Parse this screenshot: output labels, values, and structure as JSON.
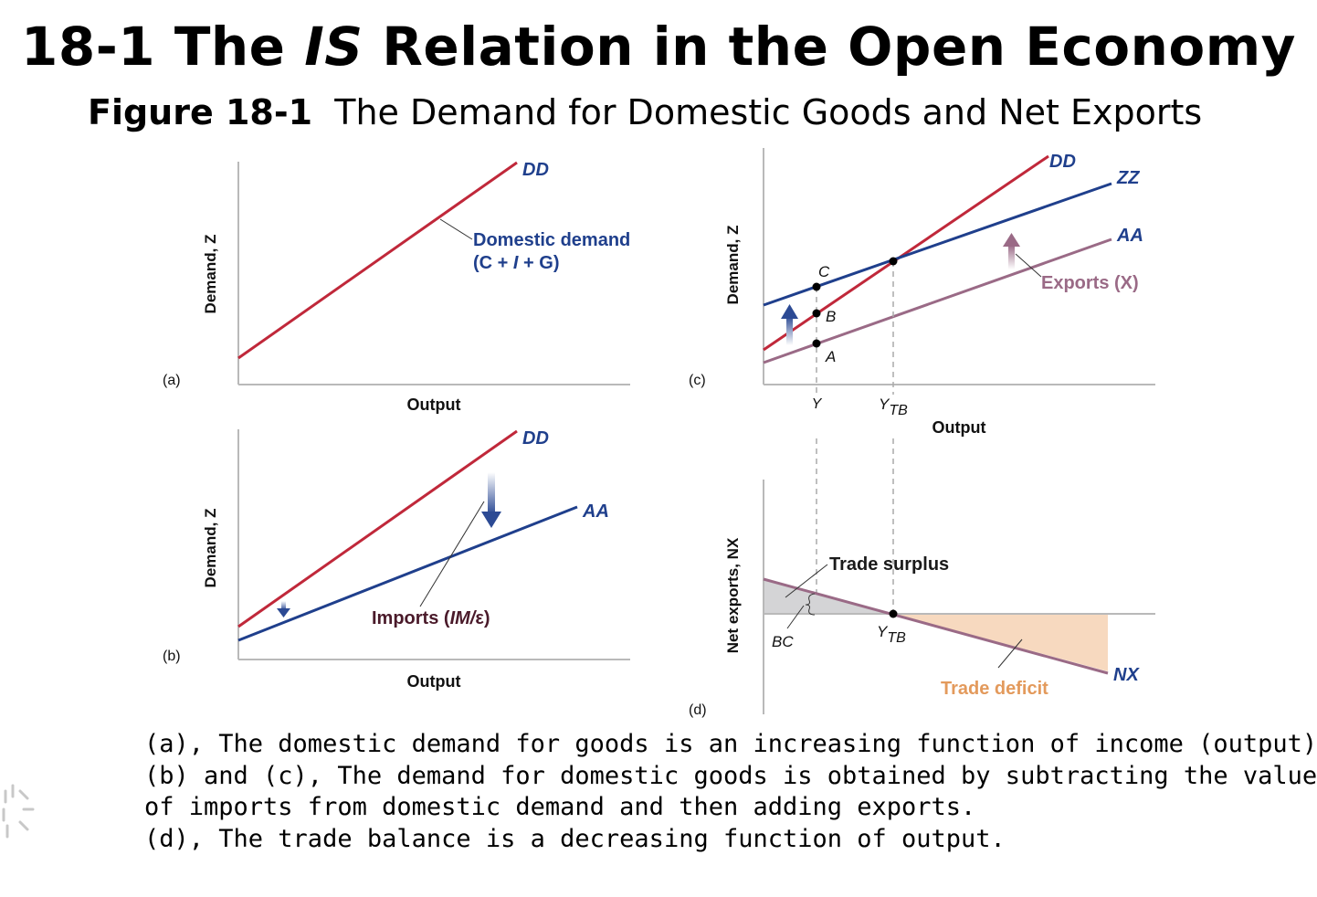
{
  "slide": {
    "title_prefix": "18-1 The ",
    "title_italic": "IS",
    "title_suffix": " Relation in the Open Economy",
    "figure_label": "Figure 18-1",
    "figure_caption": "The Demand for Domestic Goods and Net Exports"
  },
  "panels": {
    "a": {
      "label": "(a)",
      "ylabel": "Demand, Z",
      "xlabel": "Output",
      "dd_label": "DD",
      "callout_line1": "Domestic demand",
      "callout_line2_open": "(C + ",
      "callout_line2_i": "I",
      "callout_line2_close": " + G)"
    },
    "b": {
      "label": "(b)",
      "ylabel": "Demand, Z",
      "xlabel": "Output",
      "dd_label": "DD",
      "aa_label": "AA",
      "imports_prefix": "Imports (",
      "imports_mid": "IM/",
      "imports_suffix": "ε)"
    },
    "c": {
      "label": "(c)",
      "ylabel": "Demand, Z",
      "xlabel": "Output",
      "dd_label": "DD",
      "zz_label": "ZZ",
      "aa_label": "AA",
      "exports_label": "Exports (X)",
      "point_c": "C",
      "point_b": "B",
      "point_a": "A",
      "tick_y": "Y",
      "tick_ytb_main": "Y",
      "tick_ytb_sub": "TB"
    },
    "d": {
      "label": "(d)",
      "ylabel": "Net exports, NX",
      "surplus_label": "Trade surplus",
      "deficit_label": "Trade deficit",
      "nx_label": "NX",
      "bc_label": "BC",
      "ytb_main": "Y",
      "ytb_sub": "TB"
    }
  },
  "colors": {
    "dd_red": "#c0283a",
    "aa_blue": "#1f3f8c",
    "exports_mauve": "#9a6a86",
    "deficit_fill": "#f7d9bf",
    "surplus_fill": "#d4d4d6",
    "deficit_text": "#e39a5c",
    "imports_text": "#4a1a2a",
    "axis_gray": "#b9b9b9"
  },
  "caption_lines": [
    "(a), The domestic demand for goods is an increasing function of income (output).",
    "(b) and (c), The demand for domestic goods is obtained by subtracting the value",
    "of imports from domestic demand and then adding exports.",
    "(d), The trade balance is a decreasing function of output."
  ]
}
